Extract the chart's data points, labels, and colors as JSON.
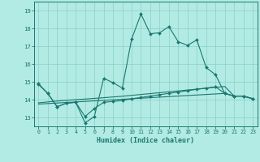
{
  "xlabel": "Humidex (Indice chaleur)",
  "background_color": "#b2ebe4",
  "grid_color": "#8ecec8",
  "line_color": "#1a7870",
  "x": [
    0,
    1,
    2,
    3,
    4,
    5,
    6,
    7,
    8,
    9,
    10,
    11,
    12,
    13,
    14,
    15,
    16,
    17,
    18,
    19,
    20,
    21,
    22,
    23
  ],
  "y_line1": [
    14.9,
    14.35,
    13.6,
    13.8,
    13.85,
    12.7,
    13.05,
    15.2,
    14.95,
    14.65,
    17.4,
    18.8,
    17.7,
    17.75,
    18.1,
    17.25,
    17.05,
    17.35,
    15.8,
    15.4,
    14.35,
    14.2,
    14.2,
    14.05
  ],
  "y_line2": [
    14.85,
    14.35,
    13.6,
    13.8,
    13.85,
    13.05,
    13.5,
    13.85,
    13.9,
    13.95,
    14.05,
    14.12,
    14.2,
    14.28,
    14.35,
    14.43,
    14.5,
    14.58,
    14.65,
    14.72,
    14.35,
    14.2,
    14.2,
    14.05
  ],
  "y_line3": [
    13.82,
    13.87,
    13.92,
    13.96,
    14.0,
    14.03,
    14.07,
    14.11,
    14.15,
    14.19,
    14.24,
    14.29,
    14.34,
    14.39,
    14.44,
    14.49,
    14.54,
    14.59,
    14.64,
    14.69,
    14.74,
    14.2,
    14.2,
    14.05
  ],
  "y_line4": [
    13.75,
    13.78,
    13.81,
    13.84,
    13.87,
    13.9,
    13.93,
    13.96,
    13.99,
    14.02,
    14.05,
    14.08,
    14.11,
    14.14,
    14.17,
    14.2,
    14.23,
    14.26,
    14.29,
    14.32,
    14.35,
    14.2,
    14.2,
    14.05
  ],
  "ylim": [
    12.5,
    19.5
  ],
  "xlim": [
    -0.5,
    23.5
  ],
  "yticks": [
    13,
    14,
    15,
    16,
    17,
    18,
    19
  ],
  "xticks": [
    0,
    1,
    2,
    3,
    4,
    5,
    6,
    7,
    8,
    9,
    10,
    11,
    12,
    13,
    14,
    15,
    16,
    17,
    18,
    19,
    20,
    21,
    22,
    23
  ]
}
